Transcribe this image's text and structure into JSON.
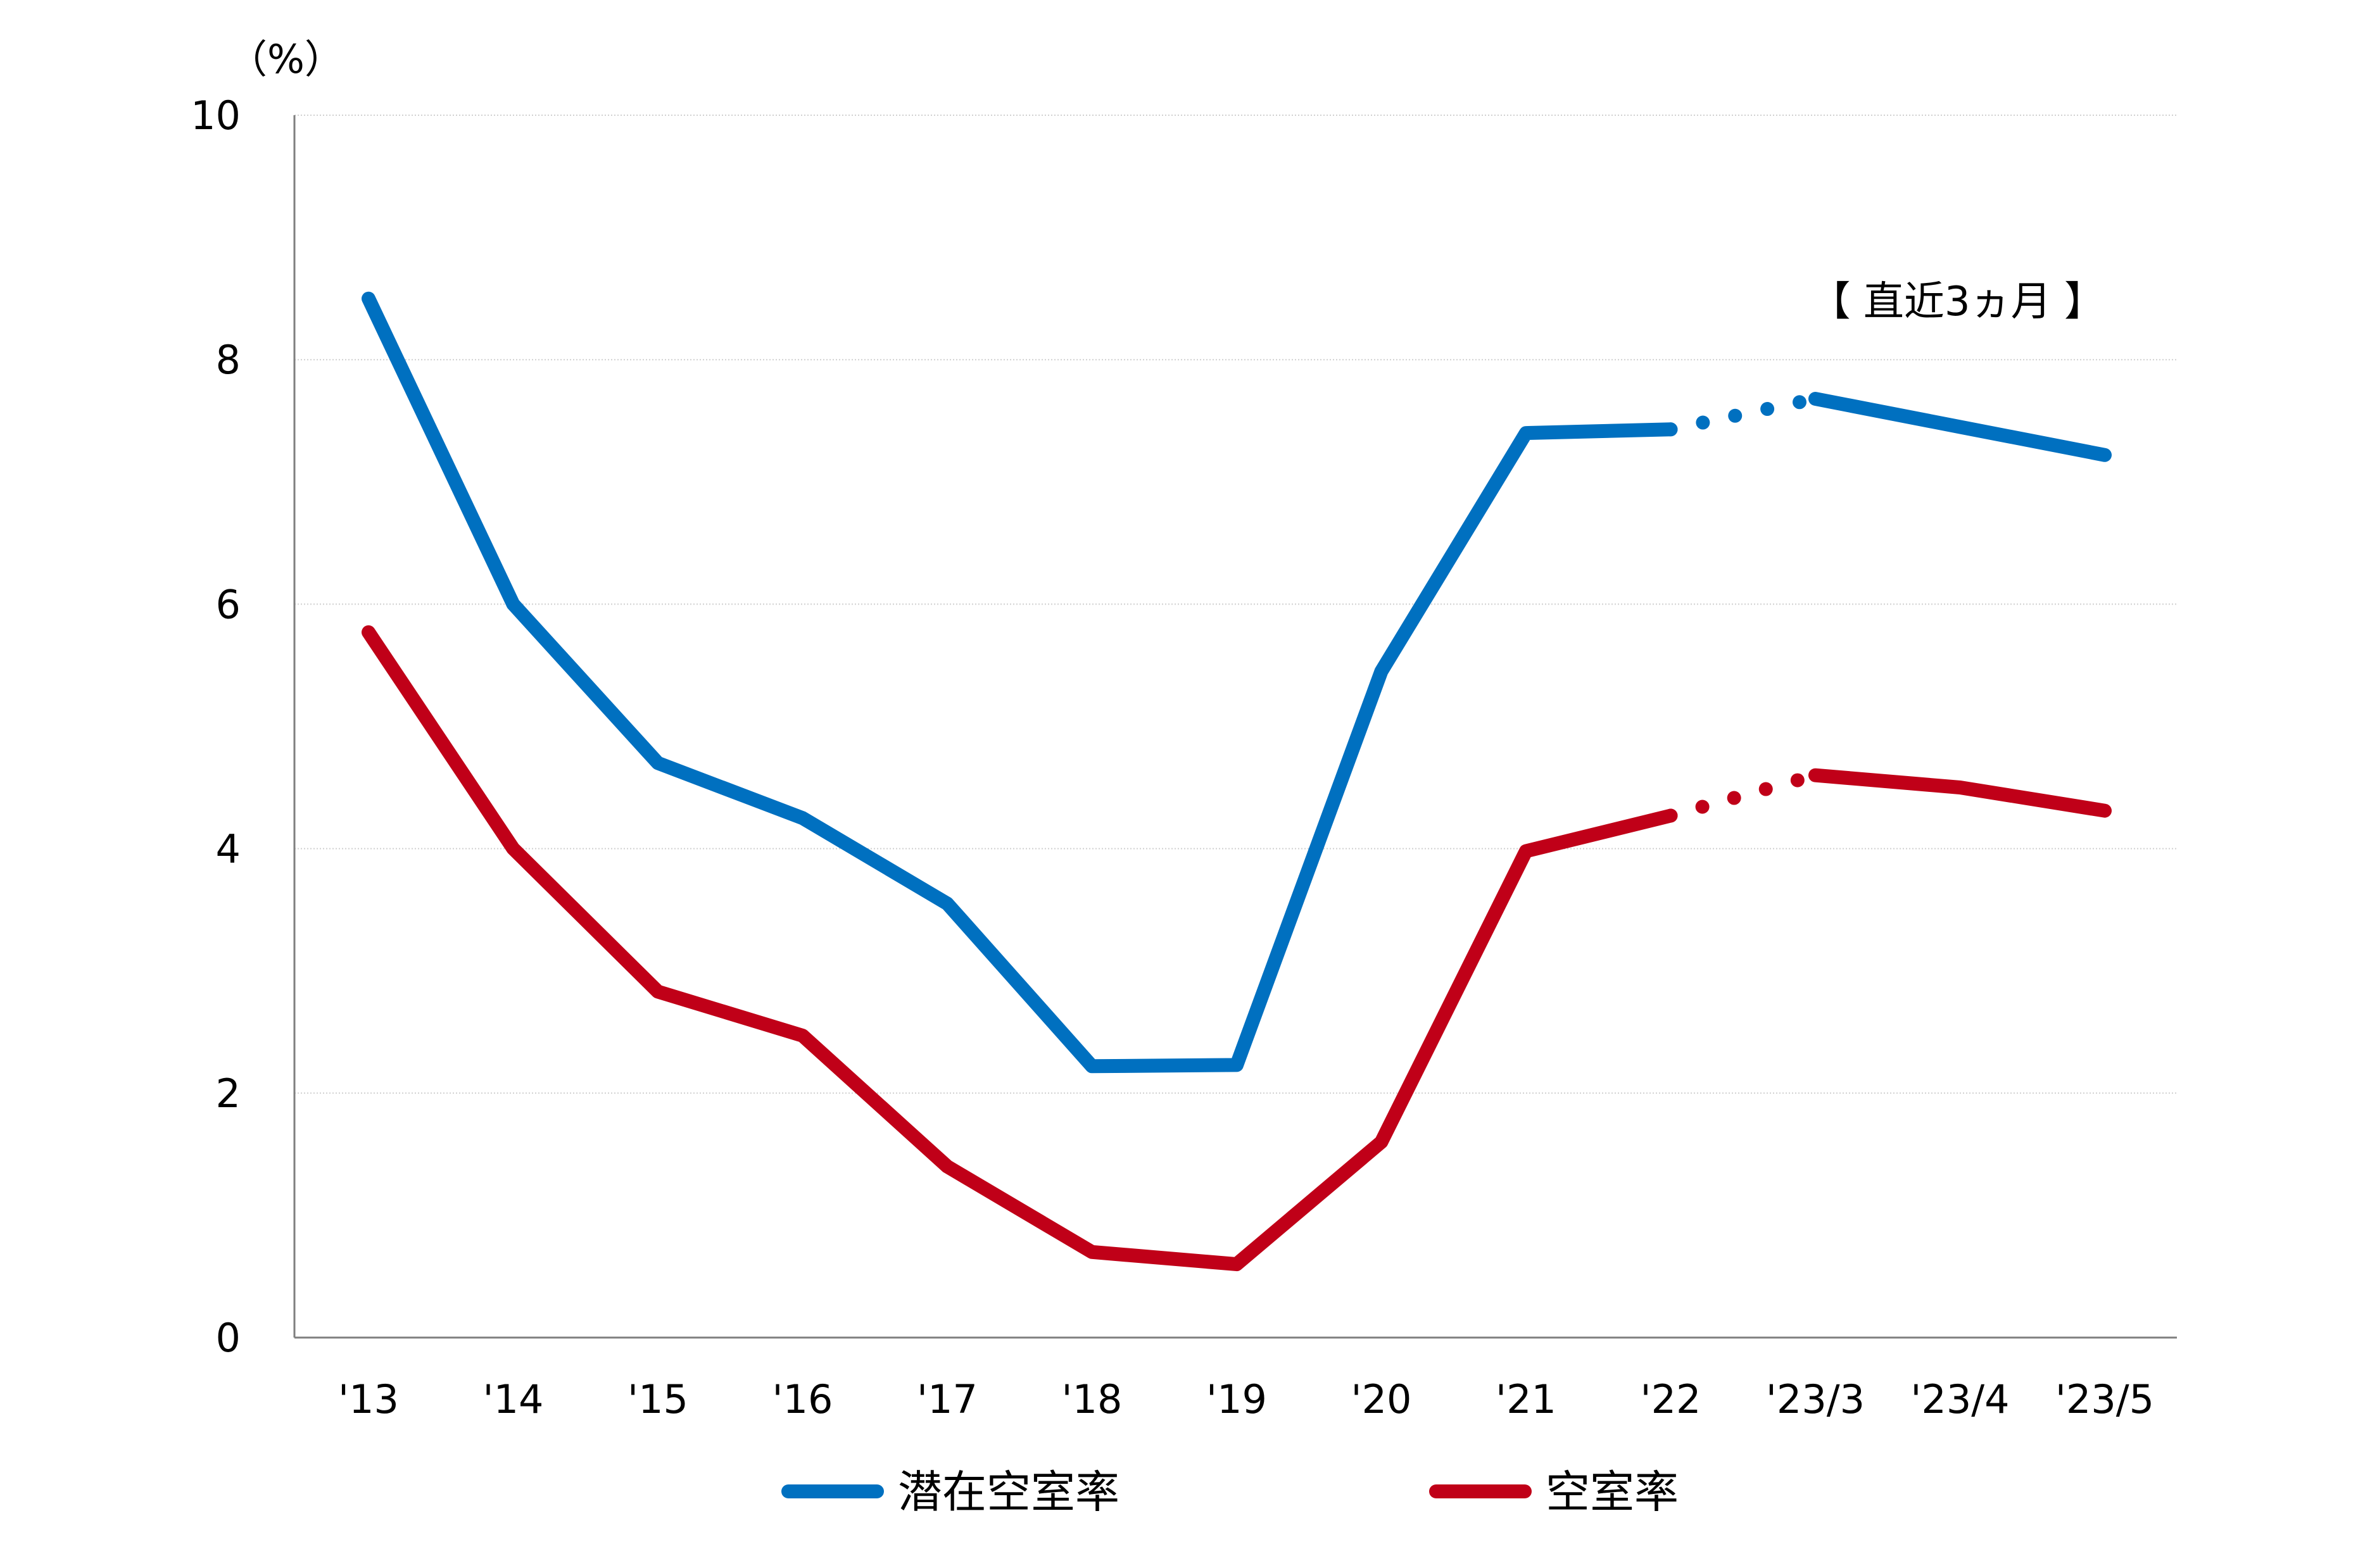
{
  "chart_data": {
    "type": "line",
    "title": "",
    "xlabel": "",
    "ylabel": "（%）",
    "ylim": [
      0,
      10
    ],
    "y_ticks": [
      0,
      2,
      4,
      6,
      8,
      10
    ],
    "grid": true,
    "legend_position": "bottom",
    "categories": [
      "'13",
      "'14",
      "'15",
      "'16",
      "'17",
      "'18",
      "'19",
      "'20",
      "'21",
      "'22",
      "'23/3",
      "'23/4",
      "'23/5"
    ],
    "annotation": "【 直近3ヵ月 】",
    "dotted_segment": [
      "'22",
      "'23/3"
    ],
    "series": [
      {
        "name": "潜在空室率",
        "color": "#0070C0",
        "values": [
          8.5,
          6.0,
          4.7,
          4.25,
          3.55,
          2.22,
          2.23,
          5.45,
          7.4,
          7.43,
          7.68,
          7.45,
          7.22
        ]
      },
      {
        "name": "空室率",
        "color": "#C00018",
        "values": [
          5.77,
          4.0,
          2.83,
          2.47,
          1.4,
          0.7,
          0.6,
          1.6,
          3.98,
          4.27,
          4.6,
          4.5,
          4.31
        ]
      }
    ]
  }
}
